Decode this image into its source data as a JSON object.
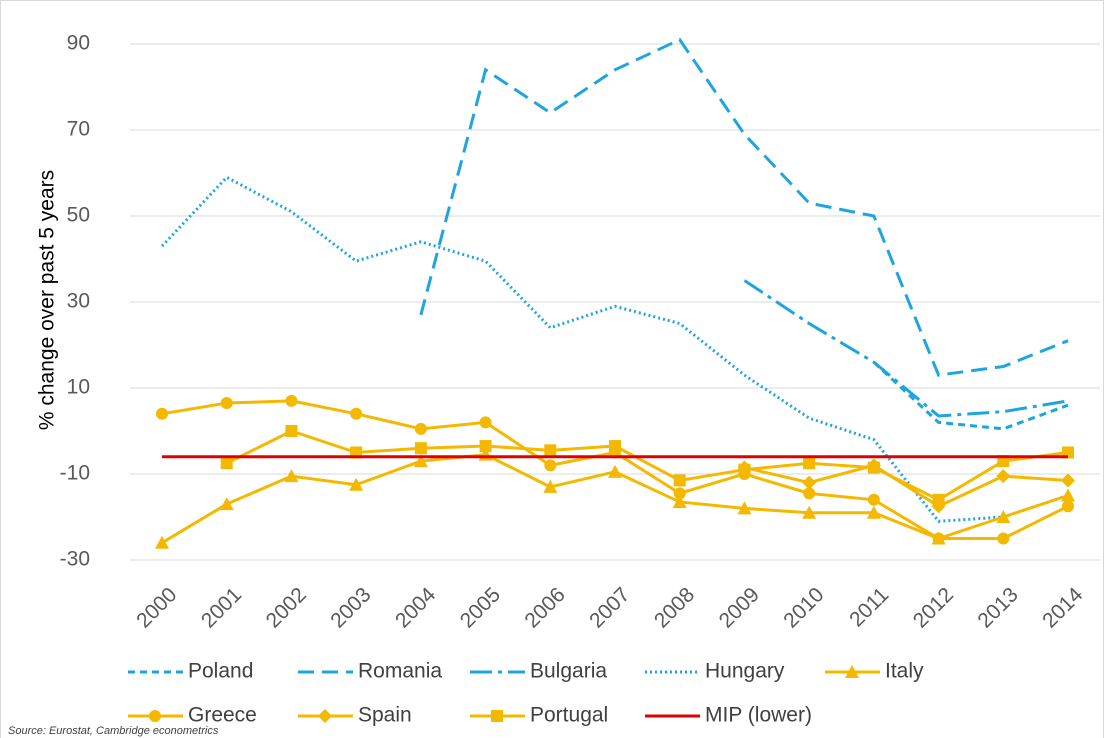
{
  "chart_data": {
    "type": "line",
    "y_label": "% change over past 5 years",
    "source": "Source: Eurostat, Cambridge econometrics",
    "categories": [
      "2000",
      "2001",
      "2002",
      "2003",
      "2004",
      "2005",
      "2006",
      "2007",
      "2008",
      "2009",
      "2010",
      "2011",
      "2012",
      "2013",
      "2014"
    ],
    "ylim": [
      -30,
      90
    ],
    "yticks": [
      -30,
      -10,
      10,
      30,
      50,
      70,
      90
    ],
    "grid": true,
    "series": [
      {
        "name": "Poland",
        "color": "#1ea5e0",
        "style": "dash",
        "values": [
          null,
          null,
          null,
          null,
          null,
          null,
          null,
          null,
          null,
          null,
          null,
          16,
          2,
          0.5,
          6
        ]
      },
      {
        "name": "Romania",
        "color": "#1ea5e0",
        "style": "longdash",
        "values": [
          null,
          null,
          null,
          null,
          27,
          84,
          74,
          84,
          91,
          69,
          53,
          50,
          13,
          15,
          21
        ]
      },
      {
        "name": "Bulgaria",
        "color": "#1ea5e0",
        "style": "dashdot",
        "values": [
          null,
          null,
          null,
          null,
          null,
          null,
          null,
          null,
          null,
          35,
          25,
          16,
          3.5,
          4.5,
          7
        ]
      },
      {
        "name": "Hungary",
        "color": "#1ea5e0",
        "style": "dot",
        "values": [
          43,
          59,
          51,
          39.5,
          44,
          39.5,
          24,
          29,
          25,
          13,
          3,
          -2,
          -21,
          -20,
          -15
        ]
      },
      {
        "name": "Italy",
        "color": "#f5b800",
        "marker": "triangle",
        "values": [
          -26,
          -17,
          -10.5,
          -12.5,
          -7,
          -5.5,
          -13,
          -9.5,
          -16.5,
          -18,
          -19,
          -19,
          -25,
          -20,
          -15
        ]
      },
      {
        "name": "Greece",
        "color": "#f5b800",
        "marker": "circle",
        "values": [
          4,
          6.5,
          7,
          4,
          0.5,
          2,
          -8,
          -5,
          -14.5,
          -10,
          -14.5,
          -16,
          -25,
          -25,
          -17.5
        ]
      },
      {
        "name": "Spain",
        "color": "#f5b800",
        "marker": "diamond",
        "values": [
          null,
          null,
          null,
          null,
          null,
          null,
          null,
          null,
          null,
          -8.5,
          -12,
          -8,
          -17.5,
          -10.5,
          -11.5
        ]
      },
      {
        "name": "Portugal",
        "color": "#f5b800",
        "marker": "square",
        "values": [
          null,
          -7.5,
          0,
          -5,
          -4,
          -3.5,
          -4.5,
          -3.5,
          -11.5,
          -9,
          -7.5,
          -8.5,
          -16,
          -7,
          -5
        ]
      },
      {
        "name": "MIP (lower)",
        "color": "#e00000",
        "style": "solid",
        "values": [
          -6,
          -6,
          -6,
          -6,
          -6,
          -6,
          -6,
          -6,
          -6,
          -6,
          -6,
          -6,
          -6,
          -6,
          -6
        ]
      }
    ]
  }
}
